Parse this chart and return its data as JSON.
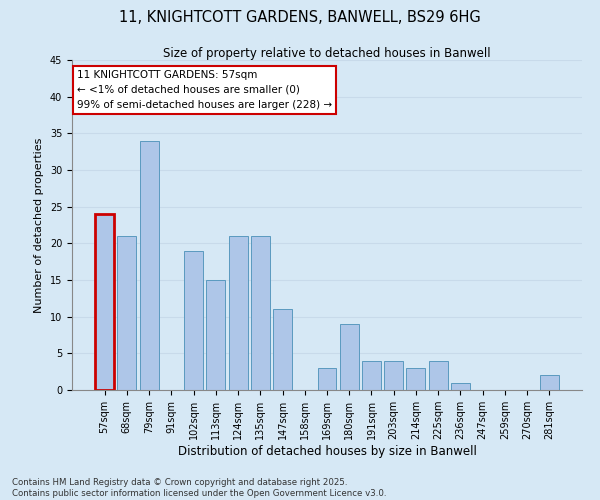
{
  "title": "11, KNIGHTCOTT GARDENS, BANWELL, BS29 6HG",
  "subtitle": "Size of property relative to detached houses in Banwell",
  "xlabel": "Distribution of detached houses by size in Banwell",
  "ylabel": "Number of detached properties",
  "categories": [
    "57sqm",
    "68sqm",
    "79sqm",
    "91sqm",
    "102sqm",
    "113sqm",
    "124sqm",
    "135sqm",
    "147sqm",
    "158sqm",
    "169sqm",
    "180sqm",
    "191sqm",
    "203sqm",
    "214sqm",
    "225sqm",
    "236sqm",
    "247sqm",
    "259sqm",
    "270sqm",
    "281sqm"
  ],
  "values": [
    24,
    21,
    34,
    0,
    19,
    15,
    21,
    21,
    11,
    0,
    3,
    9,
    4,
    4,
    3,
    4,
    1,
    0,
    0,
    0,
    2
  ],
  "bar_color": "#aec6e8",
  "bar_edge_color": "#5a9abf",
  "highlight_bar_index": 0,
  "highlight_edge_color": "#cc0000",
  "annotation_box_text": "11 KNIGHTCOTT GARDENS: 57sqm\n← <1% of detached houses are smaller (0)\n99% of semi-detached houses are larger (228) →",
  "annotation_box_edge_color": "#cc0000",
  "annotation_box_face_color": "#ffffff",
  "ylim": [
    0,
    45
  ],
  "yticks": [
    0,
    5,
    10,
    15,
    20,
    25,
    30,
    35,
    40,
    45
  ],
  "grid_color": "#c8daea",
  "background_color": "#d6e8f5",
  "footer_line1": "Contains HM Land Registry data © Crown copyright and database right 2025.",
  "footer_line2": "Contains public sector information licensed under the Open Government Licence v3.0.",
  "fig_width": 6.0,
  "fig_height": 5.0,
  "title_fontsize": 10.5,
  "subtitle_fontsize": 8.5,
  "annotation_fontsize": 7.5,
  "footer_fontsize": 6.2,
  "tick_fontsize": 7,
  "ylabel_fontsize": 8,
  "xlabel_fontsize": 8.5
}
